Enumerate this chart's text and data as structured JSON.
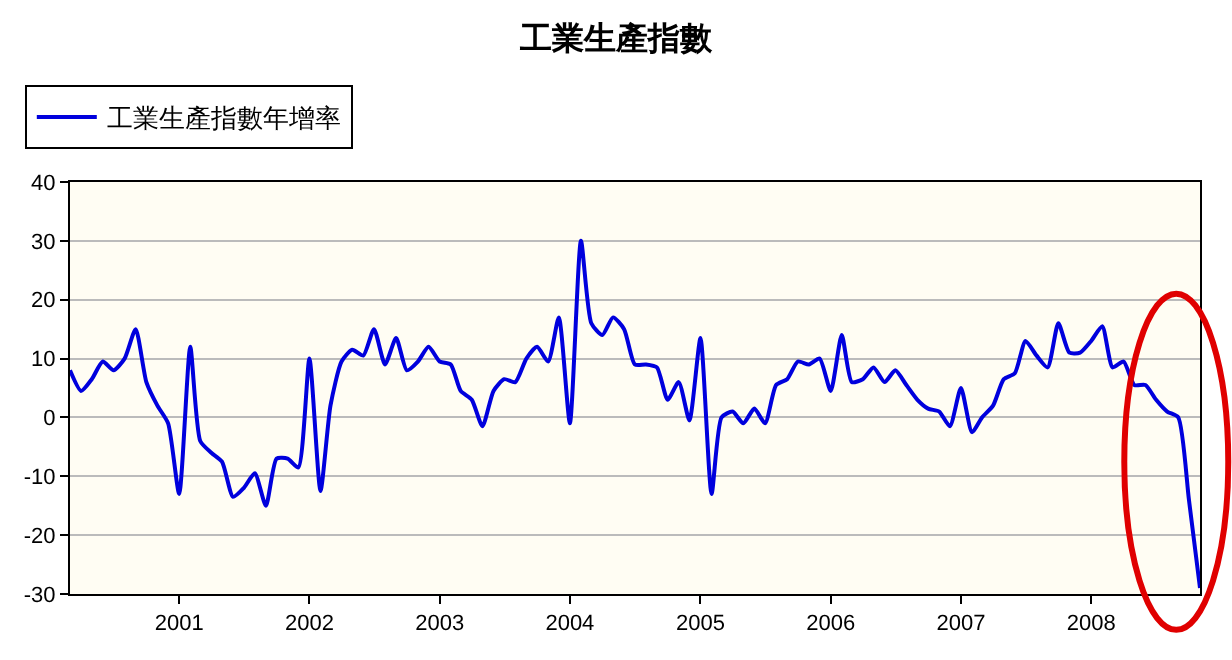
{
  "chart_data": {
    "type": "line",
    "title": "工業生產指數",
    "x": [
      "2000-03",
      "2000-04",
      "2000-05",
      "2000-06",
      "2000-07",
      "2000-08",
      "2000-09",
      "2000-10",
      "2000-11",
      "2000-12",
      "2001-01",
      "2001-02",
      "2001-03",
      "2001-04",
      "2001-05",
      "2001-06",
      "2001-07",
      "2001-08",
      "2001-09",
      "2001-10",
      "2001-11",
      "2001-12",
      "2002-01",
      "2002-02",
      "2002-03",
      "2002-04",
      "2002-05",
      "2002-06",
      "2002-07",
      "2002-08",
      "2002-09",
      "2002-10",
      "2002-11",
      "2002-12",
      "2003-01",
      "2003-02",
      "2003-03",
      "2003-04",
      "2003-05",
      "2003-06",
      "2003-07",
      "2003-08",
      "2003-09",
      "2003-10",
      "2003-11",
      "2003-12",
      "2004-01",
      "2004-02",
      "2004-03",
      "2004-04",
      "2004-05",
      "2004-06",
      "2004-07",
      "2004-08",
      "2004-09",
      "2004-10",
      "2004-11",
      "2004-12",
      "2005-01",
      "2005-02",
      "2005-03",
      "2005-04",
      "2005-05",
      "2005-06",
      "2005-07",
      "2005-08",
      "2005-09",
      "2005-10",
      "2005-11",
      "2005-12",
      "2006-01",
      "2006-02",
      "2006-03",
      "2006-04",
      "2006-05",
      "2006-06",
      "2006-07",
      "2006-08",
      "2006-09",
      "2006-10",
      "2006-11",
      "2006-12",
      "2007-01",
      "2007-02",
      "2007-03",
      "2007-04",
      "2007-05",
      "2007-06",
      "2007-07",
      "2007-08",
      "2007-09",
      "2007-10",
      "2007-11",
      "2007-12",
      "2008-01",
      "2008-02",
      "2008-03",
      "2008-04",
      "2008-05",
      "2008-06",
      "2008-07",
      "2008-08",
      "2008-09",
      "2008-10",
      "2008-11"
    ],
    "series": [
      {
        "name": "工業生產指數年增率",
        "color": "#0000dd",
        "values": [
          8,
          4.5,
          6.5,
          9.5,
          8,
          10,
          15,
          6,
          2,
          -1,
          -13,
          12,
          -4,
          -6,
          -7.5,
          -13.5,
          -12,
          -9.5,
          -15,
          -7,
          -7,
          -8.5,
          10,
          -12.5,
          2,
          9.5,
          11.5,
          10.5,
          15,
          9,
          13.5,
          8,
          9.5,
          12,
          9.5,
          9,
          4.5,
          3,
          -1.5,
          4.5,
          6.5,
          6,
          10,
          12,
          9.5,
          17,
          -1,
          30,
          16,
          14,
          17,
          15,
          9,
          9,
          8.5,
          3,
          6,
          -0.5,
          13.5,
          -13,
          0,
          1,
          -1,
          1.5,
          -1,
          5.5,
          6.5,
          9.5,
          9,
          10,
          4.5,
          14,
          6,
          6.5,
          8.5,
          6,
          8,
          5.5,
          3,
          1.5,
          1,
          -1.5,
          5,
          -2.5,
          0,
          2,
          6.5,
          7.5,
          13,
          10.5,
          8.5,
          16,
          11,
          11,
          13,
          15.5,
          8.5,
          9.5,
          5.5,
          5.5,
          3,
          1,
          0,
          -14,
          -29
        ]
      }
    ],
    "xlim": [
      "2000-03",
      "2008-11"
    ],
    "xticks": [
      "2001",
      "2002",
      "2003",
      "2004",
      "2005",
      "2006",
      "2007",
      "2008"
    ],
    "ylim": [
      -30,
      40
    ],
    "yticks": [
      -30,
      -20,
      -10,
      0,
      10,
      20,
      30,
      40
    ],
    "grid": "y",
    "legend": "top left",
    "marker": "none",
    "line_style": "solid"
  }
}
